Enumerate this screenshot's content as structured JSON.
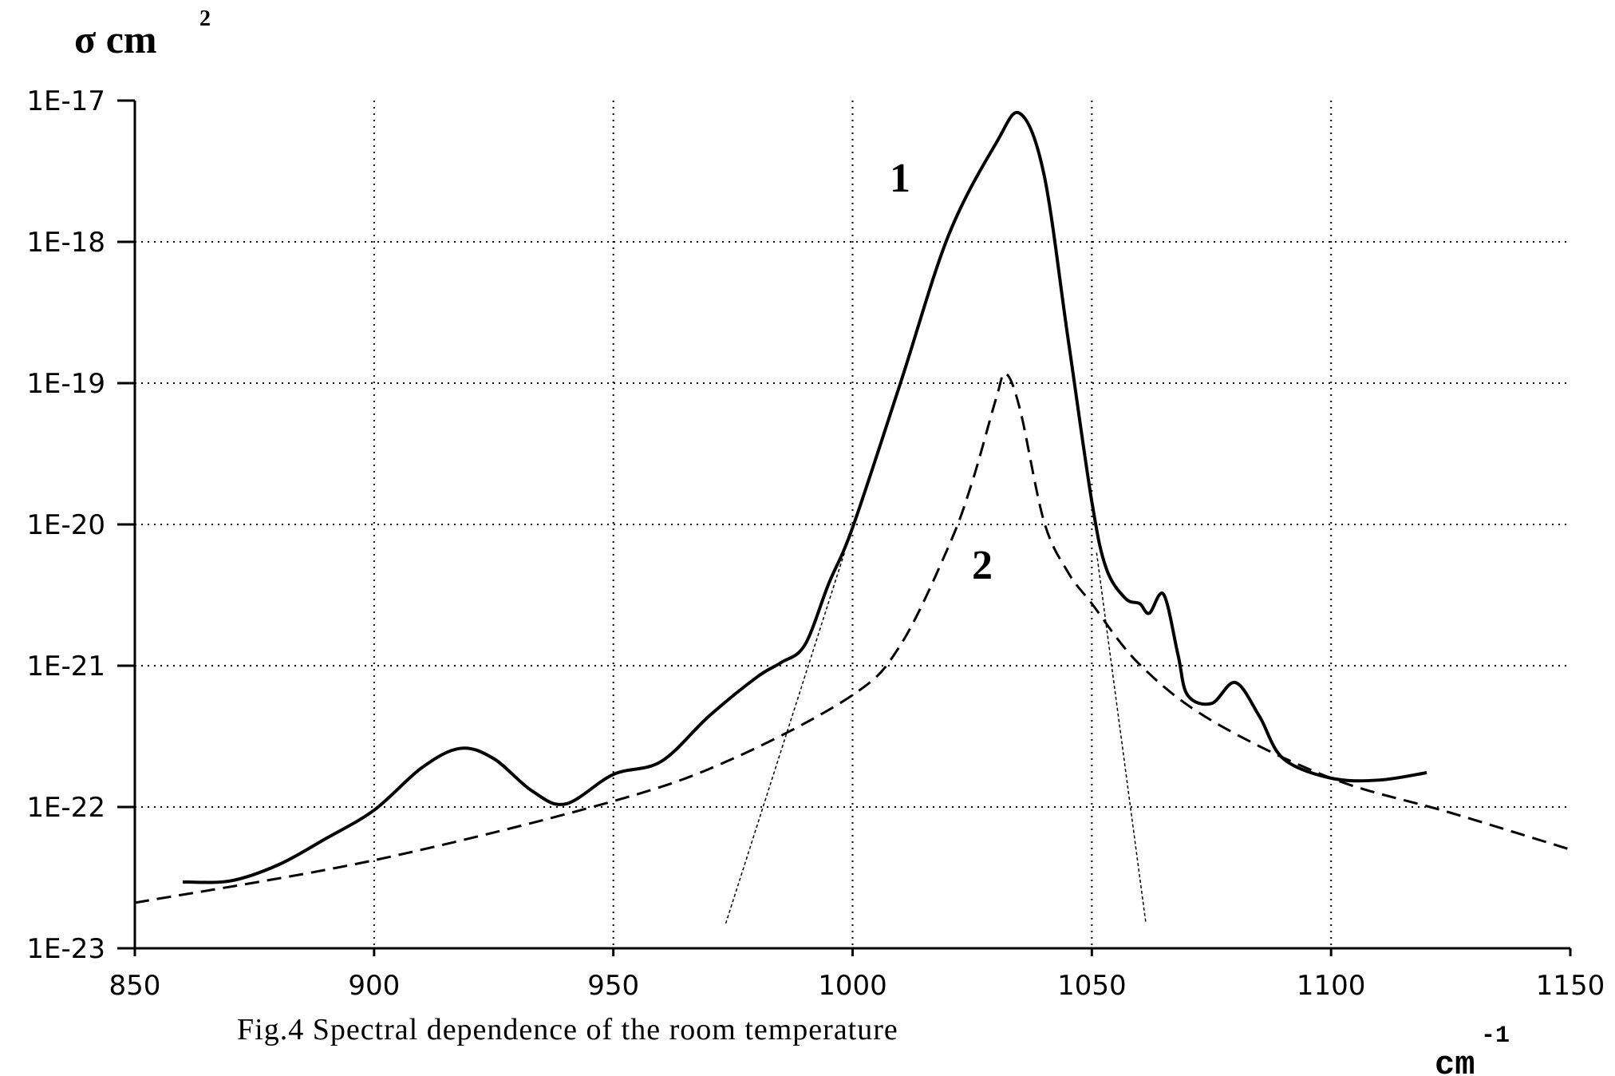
{
  "chart_data": {
    "type": "line",
    "title": "Fig.4 Spectral dependence of the room temperature",
    "y_label": "σ cm",
    "y_label_sup": "2",
    "x_label": "cm",
    "x_label_sup": "-1",
    "annotations": [
      "1",
      "2"
    ],
    "log_y": true,
    "grid": true,
    "xlim": [
      850,
      1150
    ],
    "xticks": [
      850,
      900,
      950,
      1000,
      1050,
      1100,
      1150
    ],
    "ylim": [
      1e-23,
      1e-17
    ],
    "yticks": [
      {
        "value": 1e-23,
        "label": "1E-23"
      },
      {
        "value": 1e-22,
        "label": "1E-22"
      },
      {
        "value": 1e-21,
        "label": "1E-21"
      },
      {
        "value": 1e-20,
        "label": "1E-20"
      },
      {
        "value": 1e-19,
        "label": "1E-19"
      },
      {
        "value": 1e-18,
        "label": "1E-18"
      },
      {
        "value": 1e-17,
        "label": "1E-17"
      }
    ],
    "series": [
      {
        "color": "#000000",
        "style": "solid",
        "x": [
          860,
          870,
          880,
          890,
          900,
          910,
          918,
          925,
          933,
          940,
          950,
          960,
          970,
          980,
          985,
          990,
          995,
          1000,
          1010,
          1020,
          1030,
          1035,
          1040,
          1045,
          1050,
          1053,
          1057,
          1060,
          1062,
          1065,
          1068,
          1070,
          1075,
          1080,
          1085,
          1090,
          1100,
          1110,
          1120
        ],
        "values": [
          2.95e-23,
          3e-23,
          3.9e-23,
          6e-23,
          9.5e-23,
          1.9e-22,
          2.6e-22,
          2.2e-22,
          1.3e-22,
          1.05e-22,
          1.7e-22,
          2.1e-22,
          4.4e-22,
          8.3e-22,
          1.05e-21,
          1.4e-21,
          3.8e-21,
          9.5e-21,
          1e-19,
          1.1e-18,
          5e-18,
          8.1e-18,
          3e-18,
          2.1e-19,
          1.45e-20,
          4.9e-21,
          3e-21,
          2.75e-21,
          2.35e-21,
          3.2e-21,
          1.2e-21,
          6.2e-22,
          5.4e-22,
          7.6e-22,
          4.4e-22,
          2.2e-22,
          1.6e-22,
          1.55e-22,
          1.75e-22
        ]
      },
      {
        "color": "#000000",
        "style": "dashed",
        "x": [
          850,
          900,
          950,
          975,
          1000,
          1010,
          1020,
          1025,
          1030,
          1032,
          1035,
          1040,
          1045,
          1050,
          1060,
          1075,
          1100,
          1125,
          1150
        ],
        "values": [
          2.1e-23,
          4.2e-23,
          1.1e-22,
          2.2e-22,
          6.2e-22,
          1.4e-21,
          6.9e-21,
          2e-20,
          7.8e-20,
          1.17e-19,
          6.5e-20,
          1.05e-20,
          4.6e-21,
          2.75e-21,
          1.02e-21,
          4.1e-22,
          1.6e-22,
          9.1e-23,
          5e-23
        ]
      },
      {
        "color": "#000000",
        "style": "thin",
        "x": [
          973.5,
          998.3
        ],
        "values": [
          1.5e-23,
          6.3e-21
        ]
      },
      {
        "color": "#000000",
        "style": "thin",
        "x": [
          1051,
          1061.3
        ],
        "values": [
          6.3e-21,
          1.5e-23
        ]
      }
    ]
  }
}
